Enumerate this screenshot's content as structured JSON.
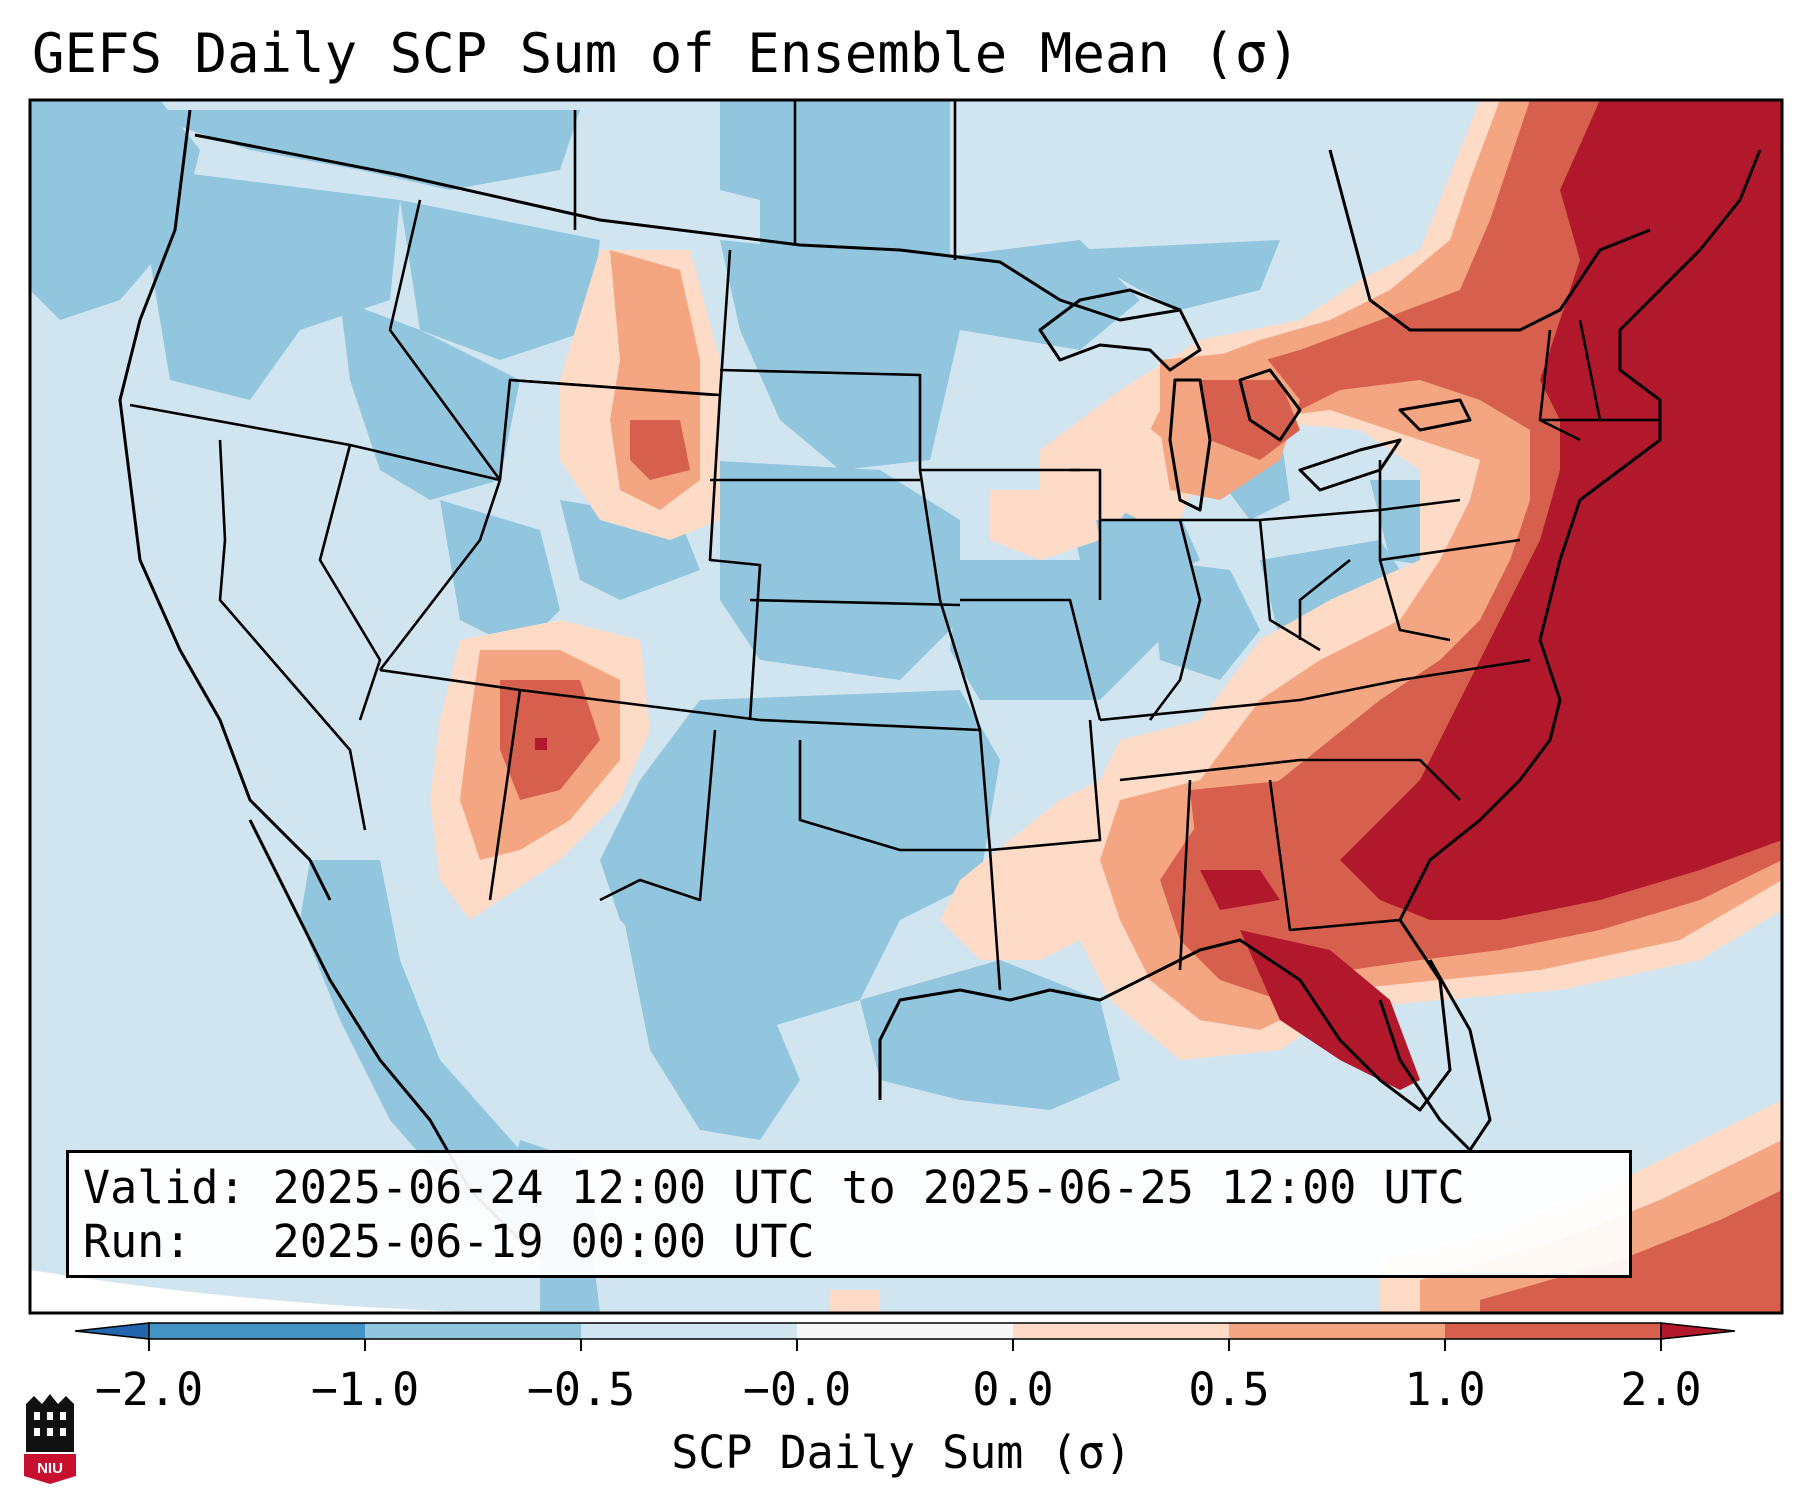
{
  "title": "GEFS Daily SCP Sum of Ensemble Mean (σ)",
  "info": {
    "valid_label": "Valid:",
    "valid_value": "2025-06-24 12:00 UTC to 2025-06-25 12:00 UTC",
    "run_label": "Run:",
    "run_value": "2025-06-19 00:00 UTC"
  },
  "colorbar": {
    "label": "SCP Daily Sum (σ)",
    "ticks": [
      "−2.0",
      "−1.0",
      "−0.5",
      "−0.0",
      "0.0",
      "0.5",
      "1.0",
      "2.0"
    ],
    "bins": [
      {
        "range": "<-2.0",
        "color": "#2166ac"
      },
      {
        "range": "-2.0 to -1.0",
        "color": "#4393c3"
      },
      {
        "range": "-1.0 to -0.5",
        "color": "#92c5de"
      },
      {
        "range": "-0.5 to -0.0",
        "color": "#d1e5f0"
      },
      {
        "range": "-0.0 to 0.0",
        "color": "#f7f7f7"
      },
      {
        "range": "0.0 to 0.5",
        "color": "#fddbc7"
      },
      {
        "range": "0.5 to 1.0",
        "color": "#f4a582"
      },
      {
        "range": "1.0 to 2.0",
        "color": "#d6604d"
      },
      {
        "range": ">2.0",
        "color": "#b2182b"
      }
    ]
  },
  "logo": {
    "text": "NIU",
    "color": "#c8102e"
  }
}
